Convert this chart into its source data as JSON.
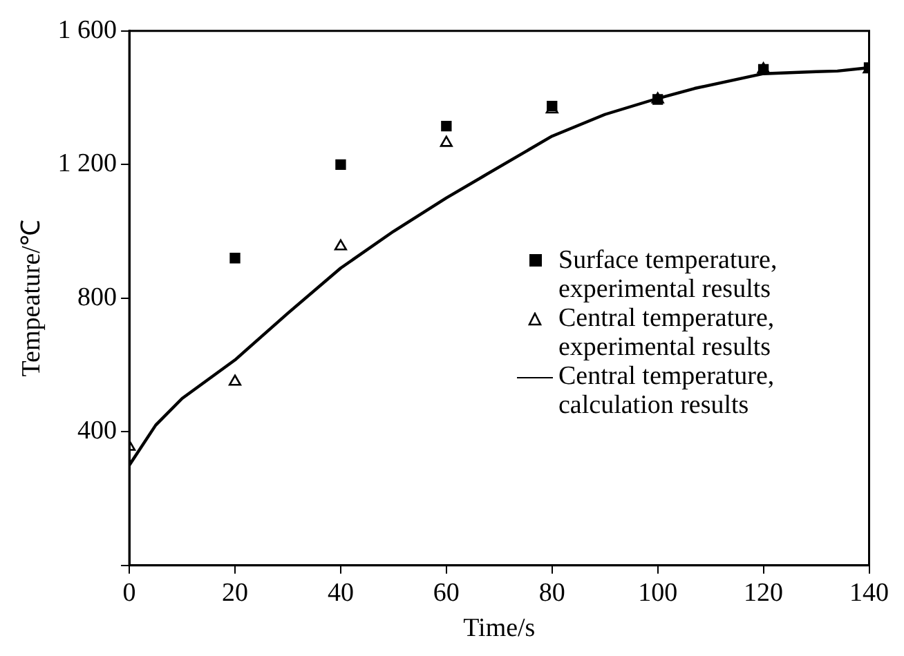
{
  "chart_data": {
    "type": "scatter",
    "xlabel": "Time/s",
    "ylabel": "Tempeature/℃",
    "xlim": [
      0,
      140
    ],
    "ylim": [
      0,
      1600
    ],
    "xticks": [
      0,
      20,
      40,
      60,
      80,
      100,
      120,
      140
    ],
    "yticks": [
      {
        "value": 0,
        "label": null
      },
      400,
      800,
      {
        "value": 1200,
        "label": "1 200"
      },
      {
        "value": 1600,
        "label": "1 600"
      }
    ],
    "grid": false,
    "legend": "right",
    "series": [
      {
        "name": "Surface temperature, experimental results",
        "type": "scatter",
        "marker": "square",
        "color": "#000000",
        "x": [
          20,
          40,
          60,
          80,
          100,
          120,
          140
        ],
        "values": [
          920,
          1200,
          1315,
          1375,
          1395,
          1485,
          1490
        ]
      },
      {
        "name": "Central temperature, experimental results",
        "type": "scatter",
        "marker": "triangle",
        "color": "#000000",
        "x": [
          0,
          20,
          40,
          60,
          80,
          100,
          120,
          140
        ],
        "values": [
          355,
          550,
          955,
          1265,
          1365,
          1395,
          1485,
          1485
        ]
      },
      {
        "name": "Central temperature, calculation results",
        "type": "line",
        "marker": "none",
        "line_style": "solid",
        "color": "#000000",
        "x": [
          0,
          5,
          10,
          20,
          30,
          40,
          50,
          60,
          67,
          80,
          90,
          100,
          107,
          120,
          130,
          134,
          140
        ],
        "values": [
          300,
          420,
          500,
          615,
          755,
          890,
          1000,
          1100,
          1165,
          1285,
          1350,
          1398,
          1428,
          1472,
          1478,
          1480,
          1490
        ]
      }
    ]
  }
}
